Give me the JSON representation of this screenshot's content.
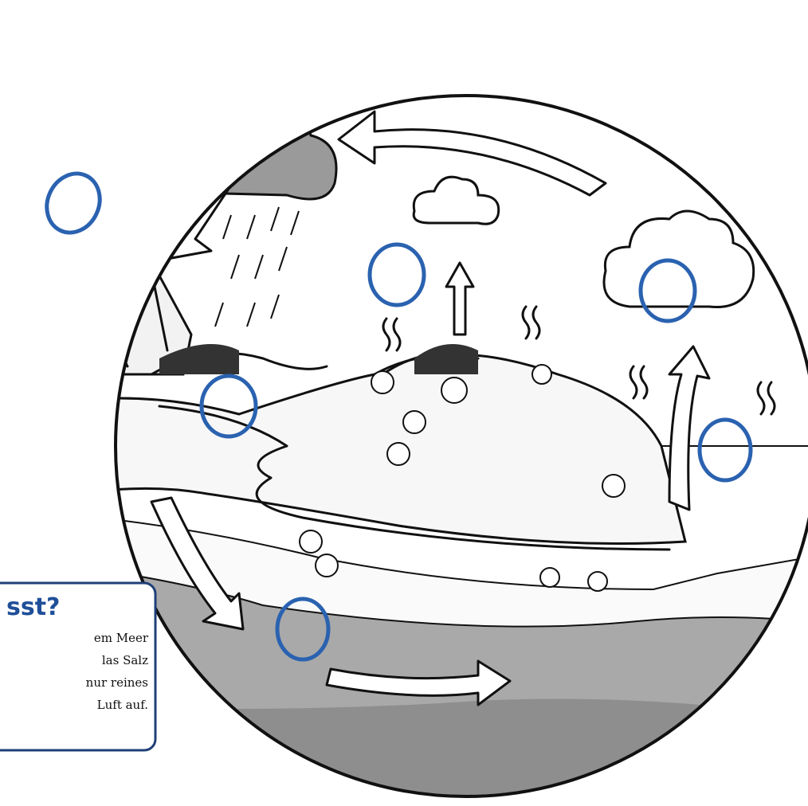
{
  "info_box": {
    "title": "sst?",
    "lines": [
      "em Meer",
      "las Salz",
      "nur reines",
      "Luft auf."
    ]
  }
}
